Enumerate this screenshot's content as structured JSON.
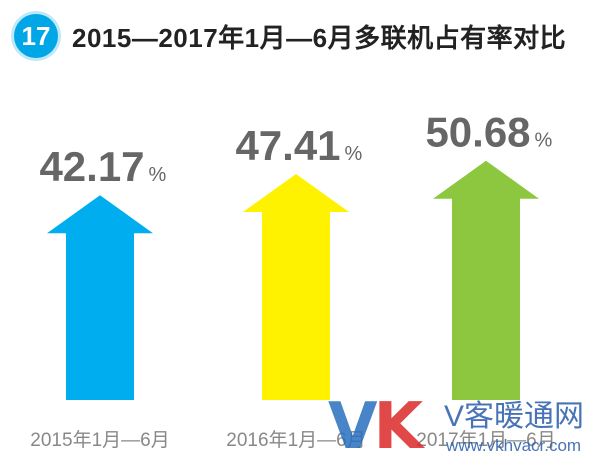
{
  "header": {
    "badge_number": "17",
    "title": "2015—2017年1月—6月多联机占有率对比"
  },
  "colors": {
    "badge": "#00a6e6",
    "series": [
      "#00adef",
      "#fff200",
      "#8dc63f"
    ],
    "value_text": "#666666",
    "label_text": "#888888"
  },
  "chart_data": {
    "type": "bar",
    "title": "2015—2017年1月—6月多联机占有率对比",
    "categories": [
      "2015年1月—6月",
      "2016年1月—6月",
      "2017年1月—6月"
    ],
    "values": [
      42.17,
      47.41,
      50.68
    ],
    "value_labels": [
      "42.17",
      "47.41",
      "50.68"
    ],
    "unit": "%",
    "xlabel": "",
    "ylabel": "",
    "grid": false,
    "legend": "none"
  },
  "watermark": {
    "logo": "VK",
    "name": "V客暖通网",
    "url": "www.vkhvacr.com"
  }
}
